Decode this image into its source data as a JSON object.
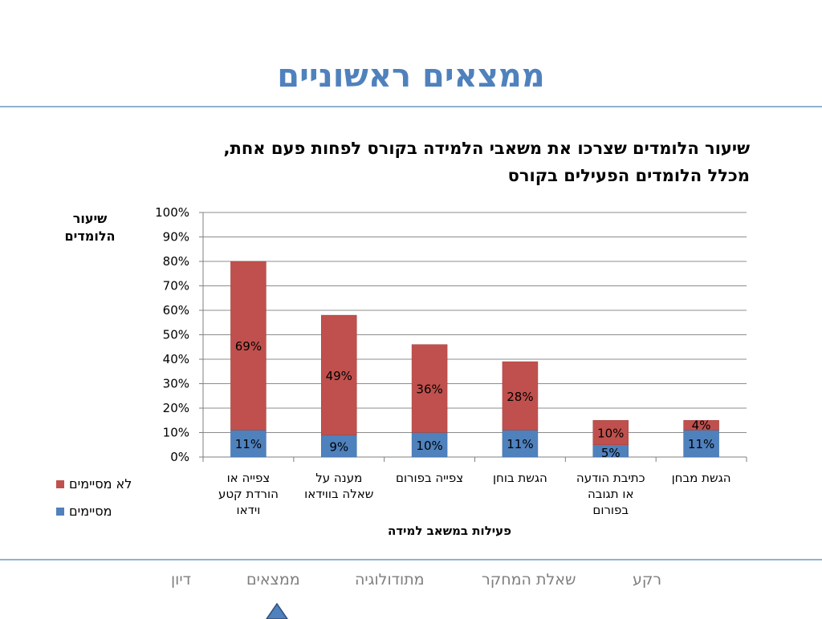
{
  "slide": {
    "title": "ממצאים ראשוניים",
    "subtitle_line1": "שיעור הלומדים שצרכו את משאבי הלמידה בקורס לפחות פעם אחת,",
    "subtitle_line2": "מכלל הלומדים הפעילים בקורס"
  },
  "chart_data": {
    "type": "bar",
    "stacked": true,
    "ylabel": "שיעור הלומדים",
    "xlabel": "פעילות במשאב למידה",
    "ylim": [
      0,
      100
    ],
    "y_ticks": [
      "0%",
      "10%",
      "20%",
      "30%",
      "40%",
      "50%",
      "60%",
      "70%",
      "80%",
      "90%",
      "100%"
    ],
    "grid": true,
    "legend_position": "left",
    "categories": [
      [
        "צפייה או",
        "הורדת קטע",
        "וידאו"
      ],
      [
        "מענה על",
        "שאלה בווידאו"
      ],
      [
        "צפייה בפורום"
      ],
      [
        "הגשת בוחן"
      ],
      [
        "כתיבת הודעה",
        "או תגובה",
        "בפורום"
      ],
      [
        "הגשת מבחן"
      ]
    ],
    "series": [
      {
        "name": "מסיימים",
        "color": "#4f81bd",
        "values": [
          11,
          9,
          10,
          11,
          5,
          11
        ],
        "labels": [
          "11%",
          "9%",
          "10%",
          "11%",
          "5%",
          "11%"
        ]
      },
      {
        "name": "לא מסיימים",
        "color": "#c0504d",
        "values": [
          69,
          49,
          36,
          28,
          10,
          4
        ],
        "labels": [
          "69%",
          "49%",
          "36%",
          "28%",
          "10%",
          "4%"
        ]
      }
    ]
  },
  "nav": {
    "items": [
      "רקע",
      "שאלת המחקר",
      "מתודולוגיה",
      "ממצאים",
      "דיון"
    ],
    "active": "ממצאים",
    "marker_color": "#4f81bd"
  }
}
